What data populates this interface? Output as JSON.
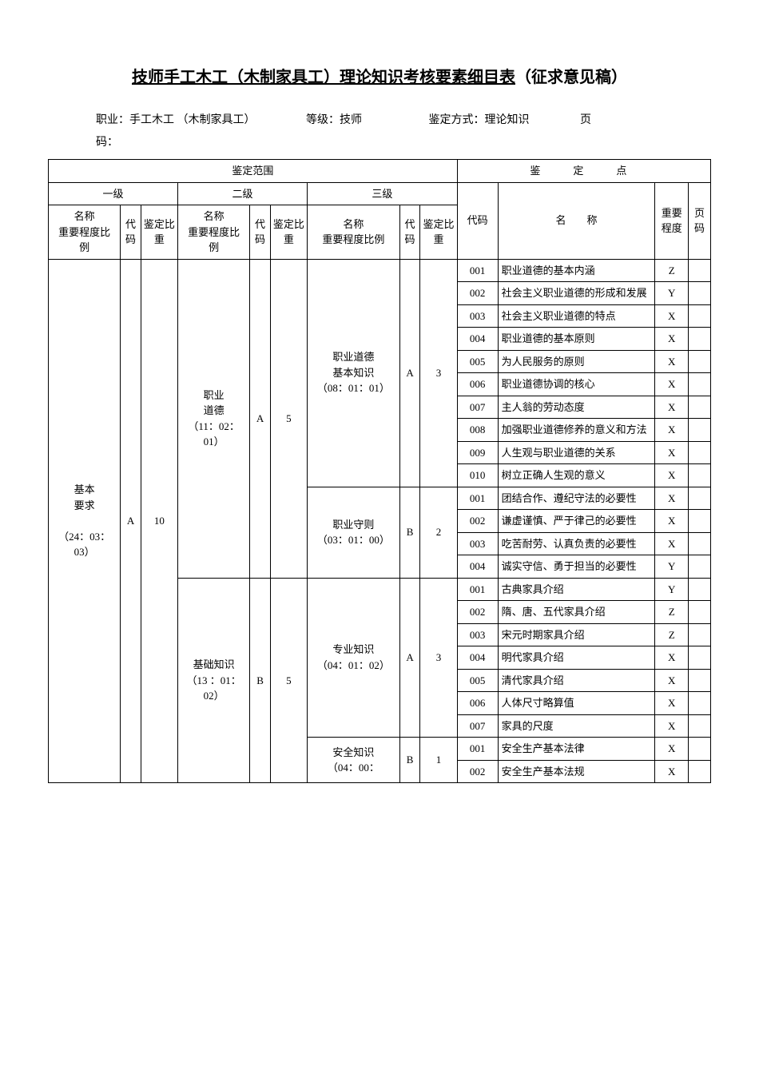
{
  "title_underline": "技师手工木工（木制家具工）理论知识考核要素细目表",
  "title_suffix": "（征求意见稿）",
  "meta": {
    "occupation_label": "职业：",
    "occupation": "手工木工 （木制家具工）",
    "grade_label": "等级：",
    "grade": "技师",
    "method_label": "鉴定方式：",
    "method": "理论知识",
    "page_label": "页",
    "code_label": "码："
  },
  "headers": {
    "scope": "鉴定范围",
    "points": "鉴　定　点",
    "level1": "一级",
    "level2": "二级",
    "level3": "三级",
    "name_ratio": "名称",
    "ratio_line1": "重要程度比",
    "ratio_line2": "例",
    "code": "代码",
    "assess_ratio": "鉴定比重",
    "name_ratio3": "名称",
    "ratio3_line": "重要程度比例",
    "pt_code": "代码",
    "pt_name": "名　称",
    "importance": "重要程度",
    "page_code": "页码"
  },
  "level1": {
    "name": "基本要求",
    "ratio": "（24：03：03）",
    "code": "A",
    "assess": "10"
  },
  "level2_1": {
    "name": "职业道德",
    "ratio": "（11：02：01）",
    "code": "A",
    "assess": "5"
  },
  "level2_2": {
    "name": "基础知识",
    "ratio": "（13 ：01：02）",
    "code": "B",
    "assess": "5"
  },
  "level3_1": {
    "name": "职业道德基本知识",
    "ratio": "（08：01：01）",
    "code": "A",
    "assess": "3"
  },
  "level3_2": {
    "name": "职业守则",
    "ratio": "（03：01：00）",
    "code": "B",
    "assess": "2"
  },
  "level3_3": {
    "name": "专业知识",
    "ratio": "（04：01：02）",
    "code": "A",
    "assess": "3"
  },
  "level3_4": {
    "name": "安全知识",
    "ratio": "（04：00：",
    "code": "B",
    "assess": "1"
  },
  "rows": [
    {
      "code": "001",
      "name": "职业道德的基本内涵",
      "imp": "Z"
    },
    {
      "code": "002",
      "name": "社会主义职业道德的形成和发展",
      "imp": "Y"
    },
    {
      "code": "003",
      "name": "社会主义职业道德的特点",
      "imp": "X"
    },
    {
      "code": "004",
      "name": "职业道德的基本原则",
      "imp": "X"
    },
    {
      "code": "005",
      "name": "为人民服务的原则",
      "imp": "X"
    },
    {
      "code": "006",
      "name": "职业道德协调的核心",
      "imp": "X"
    },
    {
      "code": "007",
      "name": "主人翁的劳动态度",
      "imp": "X"
    },
    {
      "code": "008",
      "name": "加强职业道德修养的意义和方法",
      "imp": "X"
    },
    {
      "code": "009",
      "name": "人生观与职业道德的关系",
      "imp": "X"
    },
    {
      "code": "010",
      "name": "树立正确人生观的意义",
      "imp": "X"
    },
    {
      "code": "001",
      "name": "团结合作、遵纪守法的必要性",
      "imp": "X"
    },
    {
      "code": "002",
      "name": "谦虚谨慎、严于律己的必要性",
      "imp": "X"
    },
    {
      "code": "003",
      "name": "吃苦耐劳、认真负责的必要性",
      "imp": "X"
    },
    {
      "code": "004",
      "name": "诚实守信、勇于担当的必要性",
      "imp": "Y"
    },
    {
      "code": "001",
      "name": "古典家具介绍",
      "imp": "Y"
    },
    {
      "code": "002",
      "name": "隋、唐、五代家具介绍",
      "imp": "Z"
    },
    {
      "code": "003",
      "name": "宋元时期家具介绍",
      "imp": "Z"
    },
    {
      "code": "004",
      "name": "明代家具介绍",
      "imp": "X"
    },
    {
      "code": "005",
      "name": "清代家具介绍",
      "imp": "X"
    },
    {
      "code": "006",
      "name": "人体尺寸略算值",
      "imp": "X"
    },
    {
      "code": "007",
      "name": "家具的尺度",
      "imp": "X"
    },
    {
      "code": "001",
      "name": "安全生产基本法律",
      "imp": "X"
    },
    {
      "code": "002",
      "name": "安全生产基本法规",
      "imp": "X"
    }
  ]
}
